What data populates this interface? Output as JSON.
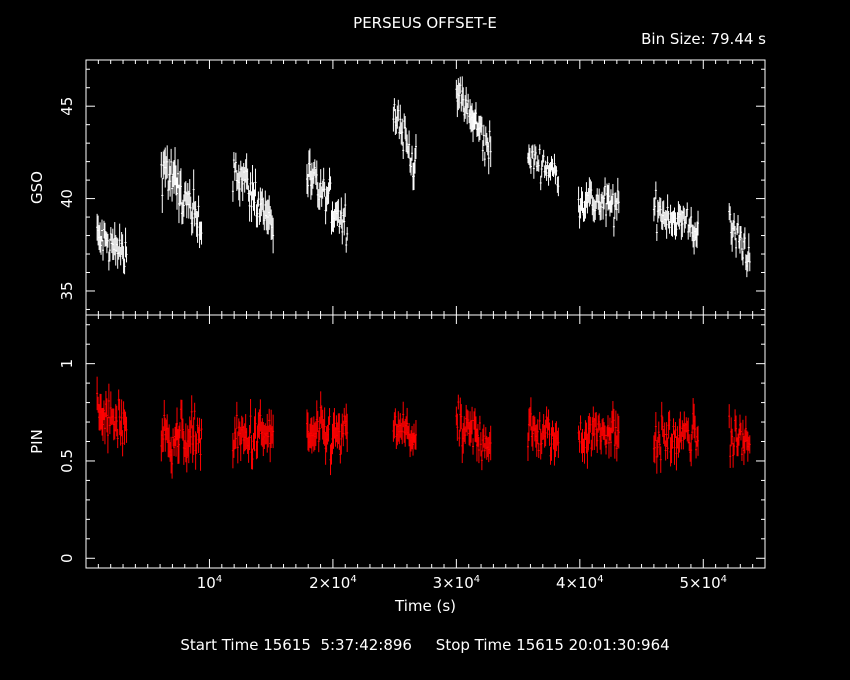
{
  "header": {
    "title": "PERSEUS OFFSET-E",
    "bin_size": "Bin Size: 79.44 s"
  },
  "footer": {
    "times": "Start Time 15615  5:37:42:896     Stop Time 15615 20:01:30:964"
  },
  "colors": {
    "gso": "#ffffff",
    "pin": "#ff0000",
    "axes": "#ffffff",
    "background": "#000000"
  },
  "chart_data": [
    {
      "type": "scatter",
      "panel": "top",
      "xlabel": "",
      "ylabel": "GSO",
      "xlim": [
        0,
        55000
      ],
      "ylim": [
        33.7,
        47.5
      ],
      "yticks": [
        35,
        40,
        45
      ],
      "segments": [
        {
          "x_start": 900,
          "x_end": 3300,
          "y_start": 37.9,
          "y_end": 36.9,
          "spread": 0.9
        },
        {
          "x_start": 6100,
          "x_end": 9400,
          "y_start": 42.0,
          "y_end": 38.2,
          "spread": 1.1
        },
        {
          "x_start": 11900,
          "x_end": 15200,
          "y_start": 41.8,
          "y_end": 38.6,
          "spread": 1.0
        },
        {
          "x_start": 17900,
          "x_end": 21200,
          "y_start": 41.2,
          "y_end": 38.6,
          "spread": 0.9
        },
        {
          "x_start": 24900,
          "x_end": 26800,
          "y_start": 45.0,
          "y_end": 41.5,
          "spread": 0.8
        },
        {
          "x_start": 30000,
          "x_end": 32800,
          "y_start": 45.8,
          "y_end": 42.5,
          "spread": 0.9
        },
        {
          "x_start": 35800,
          "x_end": 38300,
          "y_start": 42.3,
          "y_end": 41.3,
          "spread": 0.6
        },
        {
          "x_start": 39900,
          "x_end": 43200,
          "y_start": 40.0,
          "y_end": 39.5,
          "spread": 0.8
        },
        {
          "x_start": 46000,
          "x_end": 49600,
          "y_start": 39.5,
          "y_end": 38.3,
          "spread": 0.8
        },
        {
          "x_start": 52100,
          "x_end": 53800,
          "y_start": 38.5,
          "y_end": 37.0,
          "spread": 0.8
        }
      ]
    },
    {
      "type": "scatter",
      "panel": "bottom",
      "xlabel": "Time (s)",
      "ylabel": "PIN",
      "xlim": [
        0,
        55000
      ],
      "ylim": [
        -0.05,
        1.25
      ],
      "yticks": [
        0,
        0.5,
        1
      ],
      "ytick_labels": [
        "0",
        "0.5",
        "1"
      ],
      "xticks": [
        10000,
        20000,
        30000,
        40000,
        50000
      ],
      "xtick_labels": [
        {
          "pre": "10",
          "exp": "4"
        },
        {
          "pre": "2×10",
          "exp": "4"
        },
        {
          "pre": "3×10",
          "exp": "4"
        },
        {
          "pre": "4×10",
          "exp": "4"
        },
        {
          "pre": "5×10",
          "exp": "4"
        }
      ],
      "segments": [
        {
          "x_start": 900,
          "x_end": 3300,
          "y_start": 0.72,
          "y_end": 0.7,
          "spread": 0.1
        },
        {
          "x_start": 6100,
          "x_end": 9400,
          "y_start": 0.62,
          "y_end": 0.63,
          "spread": 0.1
        },
        {
          "x_start": 11900,
          "x_end": 15200,
          "y_start": 0.6,
          "y_end": 0.64,
          "spread": 0.1
        },
        {
          "x_start": 17900,
          "x_end": 21200,
          "y_start": 0.63,
          "y_end": 0.62,
          "spread": 0.1
        },
        {
          "x_start": 24900,
          "x_end": 26800,
          "y_start": 0.68,
          "y_end": 0.62,
          "spread": 0.08
        },
        {
          "x_start": 30000,
          "x_end": 32800,
          "y_start": 0.66,
          "y_end": 0.6,
          "spread": 0.09
        },
        {
          "x_start": 35800,
          "x_end": 38300,
          "y_start": 0.66,
          "y_end": 0.6,
          "spread": 0.09
        },
        {
          "x_start": 39900,
          "x_end": 43200,
          "y_start": 0.64,
          "y_end": 0.66,
          "spread": 0.09
        },
        {
          "x_start": 46000,
          "x_end": 49600,
          "y_start": 0.6,
          "y_end": 0.63,
          "spread": 0.09
        },
        {
          "x_start": 52100,
          "x_end": 53800,
          "y_start": 0.62,
          "y_end": 0.6,
          "spread": 0.08
        }
      ]
    }
  ]
}
